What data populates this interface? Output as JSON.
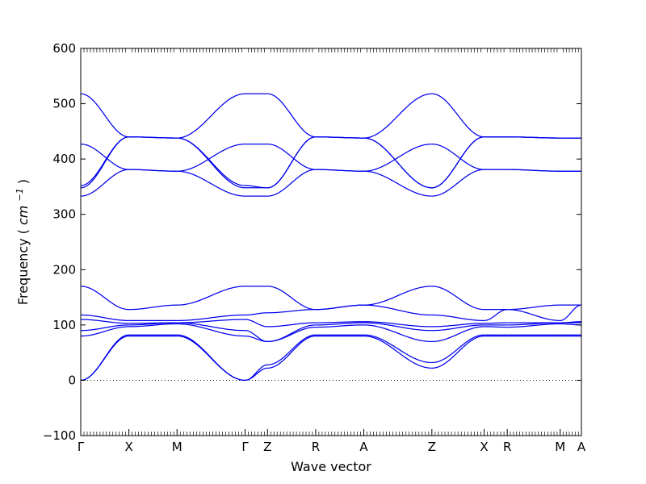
{
  "chart_data": {
    "type": "line",
    "title": "",
    "xlabel": "Wave vector",
    "ylabel": "Frequency (cm⁻¹)",
    "ylabel_parts": {
      "main": "Frequency",
      "unit_base": "cm",
      "unit_exp": "−1"
    },
    "ylim": [
      -100,
      600
    ],
    "yticks": [
      -100,
      0,
      100,
      200,
      300,
      400,
      500,
      600
    ],
    "grid": false,
    "legend": "none",
    "zero_line": "dotted",
    "line_color": "#0000ee",
    "high_symmetry_points": [
      {
        "label": "Γ",
        "x": 0.0
      },
      {
        "label": "X",
        "x": 0.5
      },
      {
        "label": "M",
        "x": 1.0
      },
      {
        "label": "Γ",
        "x": 1.707
      },
      {
        "label": "Z",
        "x": 1.94
      },
      {
        "label": "R",
        "x": 2.44
      },
      {
        "label": "A",
        "x": 2.94
      },
      {
        "label": "Z",
        "x": 3.647
      },
      {
        "label": "X",
        "x": 4.19
      },
      {
        "label": "R",
        "x": 4.43
      },
      {
        "label": "M",
        "x": 4.98
      },
      {
        "label": "A",
        "x": 5.2
      }
    ],
    "xlim": [
      0.0,
      5.2
    ],
    "segments": [
      {
        "from": "Γ",
        "to": "X",
        "x": [
          0.0,
          0.5
        ],
        "bands": [
          {
            "values": [
              0,
              80
            ]
          },
          {
            "values": [
              0,
              82
            ]
          },
          {
            "values": [
              80,
              97
            ]
          },
          {
            "values": [
              90,
              100
            ]
          },
          {
            "values": [
              110,
              103
            ]
          },
          {
            "values": [
              118,
              108
            ]
          },
          {
            "values": [
              170,
              128
            ]
          },
          {
            "values": [
              333,
              381
            ]
          },
          {
            "values": [
              348,
              440
            ]
          },
          {
            "values": [
              352,
              440
            ]
          },
          {
            "values": [
              427,
              381
            ]
          },
          {
            "values": [
              518,
              440
            ]
          }
        ]
      },
      {
        "from": "X",
        "to": "M",
        "x": [
          0.5,
          1.0
        ],
        "bands": [
          {
            "values": [
              80,
              80
            ]
          },
          {
            "values": [
              82,
              82
            ]
          },
          {
            "values": [
              97,
              102
            ]
          },
          {
            "values": [
              100,
              104
            ]
          },
          {
            "values": [
              103,
              104
            ]
          },
          {
            "values": [
              108,
              108
            ]
          },
          {
            "values": [
              128,
              136
            ]
          },
          {
            "values": [
              381,
              378
            ]
          },
          {
            "values": [
              440,
              438
            ]
          },
          {
            "values": [
              440,
              438
            ]
          },
          {
            "values": [
              381,
              378
            ]
          },
          {
            "values": [
              440,
              438
            ]
          }
        ]
      },
      {
        "from": "M",
        "to": "Γ",
        "x": [
          1.0,
          1.707
        ],
        "bands": [
          {
            "values": [
              80,
              0
            ]
          },
          {
            "values": [
              82,
              0
            ]
          },
          {
            "values": [
              102,
              80
            ]
          },
          {
            "values": [
              104,
              90
            ]
          },
          {
            "values": [
              104,
              110
            ]
          },
          {
            "values": [
              108,
              118
            ]
          },
          {
            "values": [
              136,
              170
            ]
          },
          {
            "values": [
              378,
              333
            ]
          },
          {
            "values": [
              438,
              348
            ]
          },
          {
            "values": [
              438,
              352
            ]
          },
          {
            "values": [
              378,
              427
            ]
          },
          {
            "values": [
              438,
              518
            ]
          }
        ]
      },
      {
        "from": "Γ",
        "to": "Z",
        "x": [
          1.707,
          1.94
        ],
        "bands": [
          {
            "values": [
              0,
              22
            ]
          },
          {
            "values": [
              0,
              28
            ]
          },
          {
            "values": [
              80,
              70
            ]
          },
          {
            "values": [
              90,
              70
            ]
          },
          {
            "values": [
              110,
              97
            ]
          },
          {
            "values": [
              118,
              122
            ]
          },
          {
            "values": [
              170,
              170
            ]
          },
          {
            "values": [
              333,
              333
            ]
          },
          {
            "values": [
              348,
              348
            ]
          },
          {
            "values": [
              352,
              348
            ]
          },
          {
            "values": [
              427,
              427
            ]
          },
          {
            "values": [
              518,
              518
            ]
          }
        ]
      },
      {
        "from": "Z",
        "to": "R",
        "x": [
          1.94,
          2.44
        ],
        "bands": [
          {
            "values": [
              22,
              80
            ]
          },
          {
            "values": [
              28,
              82
            ]
          },
          {
            "values": [
              70,
              96
            ]
          },
          {
            "values": [
              70,
              100
            ]
          },
          {
            "values": [
              97,
              104
            ]
          },
          {
            "values": [
              122,
              128
            ]
          },
          {
            "values": [
              170,
              128
            ]
          },
          {
            "values": [
              333,
              381
            ]
          },
          {
            "values": [
              348,
              440
            ]
          },
          {
            "values": [
              348,
              440
            ]
          },
          {
            "values": [
              427,
              381
            ]
          },
          {
            "values": [
              518,
              440
            ]
          }
        ]
      },
      {
        "from": "R",
        "to": "A",
        "x": [
          2.44,
          2.94
        ],
        "bands": [
          {
            "values": [
              80,
              80
            ]
          },
          {
            "values": [
              82,
              82
            ]
          },
          {
            "values": [
              96,
              100
            ]
          },
          {
            "values": [
              100,
              104
            ]
          },
          {
            "values": [
              104,
              106
            ]
          },
          {
            "values": [
              128,
              136
            ]
          },
          {
            "values": [
              128,
              136
            ]
          },
          {
            "values": [
              381,
              378
            ]
          },
          {
            "values": [
              440,
              438
            ]
          },
          {
            "values": [
              440,
              438
            ]
          },
          {
            "values": [
              381,
              378
            ]
          },
          {
            "values": [
              440,
              438
            ]
          }
        ]
      },
      {
        "from": "A",
        "to": "Z",
        "x": [
          2.94,
          3.647
        ],
        "bands": [
          {
            "values": [
              80,
              22
            ]
          },
          {
            "values": [
              82,
              32
            ]
          },
          {
            "values": [
              100,
              70
            ]
          },
          {
            "values": [
              104,
              90
            ]
          },
          {
            "values": [
              106,
              97
            ]
          },
          {
            "values": [
              136,
              118
            ]
          },
          {
            "values": [
              136,
              170
            ]
          },
          {
            "values": [
              378,
              333
            ]
          },
          {
            "values": [
              438,
              348
            ]
          },
          {
            "values": [
              438,
              348
            ]
          },
          {
            "values": [
              378,
              427
            ]
          },
          {
            "values": [
              438,
              518
            ]
          }
        ]
      },
      {
        "from": "Z",
        "to": "X",
        "x": [
          3.647,
          4.19
        ],
        "bands": [
          {
            "values": [
              22,
              80
            ]
          },
          {
            "values": [
              32,
              82
            ]
          },
          {
            "values": [
              70,
              97
            ]
          },
          {
            "values": [
              90,
              100
            ]
          },
          {
            "values": [
              97,
              103
            ]
          },
          {
            "values": [
              118,
              108
            ]
          },
          {
            "values": [
              170,
              128
            ]
          },
          {
            "values": [
              333,
              381
            ]
          },
          {
            "values": [
              348,
              440
            ]
          },
          {
            "values": [
              348,
              440
            ]
          },
          {
            "values": [
              427,
              381
            ]
          },
          {
            "values": [
              518,
              440
            ]
          }
        ]
      },
      {
        "from": "X",
        "to": "R",
        "x": [
          4.19,
          4.43
        ],
        "bands": [
          {
            "values": [
              80,
              80
            ]
          },
          {
            "values": [
              82,
              82
            ]
          },
          {
            "values": [
              97,
              96
            ]
          },
          {
            "values": [
              100,
              100
            ]
          },
          {
            "values": [
              103,
              104
            ]
          },
          {
            "values": [
              108,
              128
            ]
          },
          {
            "values": [
              128,
              128
            ]
          },
          {
            "values": [
              381,
              381
            ]
          },
          {
            "values": [
              440,
              440
            ]
          },
          {
            "values": [
              440,
              440
            ]
          },
          {
            "values": [
              381,
              381
            ]
          },
          {
            "values": [
              440,
              440
            ]
          }
        ]
      },
      {
        "from": "R",
        "to": "M",
        "x": [
          4.43,
          4.98
        ],
        "bands": [
          {
            "values": [
              80,
              80
            ]
          },
          {
            "values": [
              82,
              82
            ]
          },
          {
            "values": [
              96,
              102
            ]
          },
          {
            "values": [
              100,
              104
            ]
          },
          {
            "values": [
              104,
              104
            ]
          },
          {
            "values": [
              128,
              108
            ]
          },
          {
            "values": [
              128,
              136
            ]
          },
          {
            "values": [
              381,
              378
            ]
          },
          {
            "values": [
              440,
              438
            ]
          },
          {
            "values": [
              440,
              438
            ]
          },
          {
            "values": [
              381,
              378
            ]
          },
          {
            "values": [
              440,
              438
            ]
          }
        ]
      },
      {
        "from": "M",
        "to": "A",
        "x": [
          4.98,
          5.2
        ],
        "bands": [
          {
            "values": [
              80,
              80
            ]
          },
          {
            "values": [
              82,
              82
            ]
          },
          {
            "values": [
              102,
              100
            ]
          },
          {
            "values": [
              104,
              104
            ]
          },
          {
            "values": [
              104,
              106
            ]
          },
          {
            "values": [
              108,
              136
            ]
          },
          {
            "values": [
              136,
              136
            ]
          },
          {
            "values": [
              378,
              378
            ]
          },
          {
            "values": [
              438,
              438
            ]
          },
          {
            "values": [
              438,
              438
            ]
          },
          {
            "values": [
              378,
              378
            ]
          },
          {
            "values": [
              438,
              438
            ]
          }
        ]
      }
    ]
  }
}
